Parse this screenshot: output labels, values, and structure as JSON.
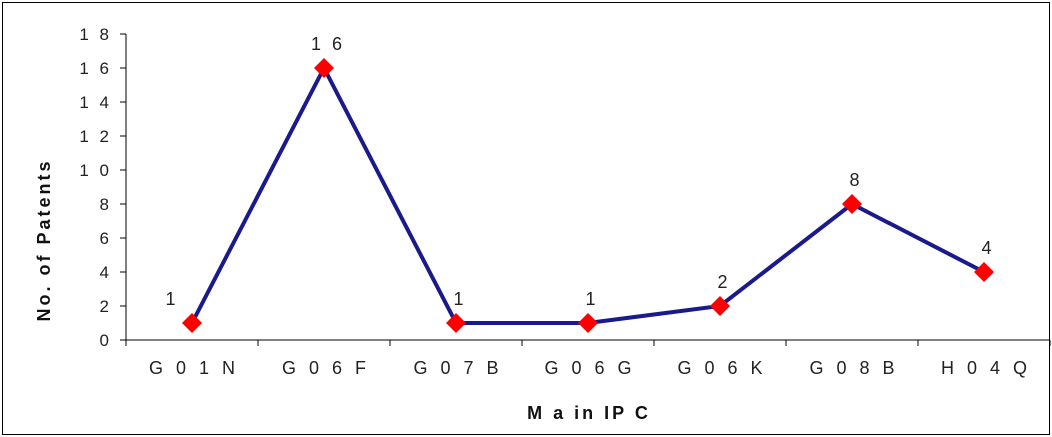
{
  "chart_data": {
    "type": "line",
    "title": "",
    "xlabel": "M a in  IP C",
    "ylabel": "No. of Patents",
    "categories": [
      "G 0 1 N",
      "G 0 6 F",
      "G 0 7 B",
      "G 0 6 G",
      "G 0 6 K",
      "G 0 8 B",
      "H 0 4 Q"
    ],
    "series": [
      {
        "values": [
          1,
          16,
          1,
          1,
          2,
          8,
          4
        ],
        "data_labels": [
          "1",
          "1 6",
          "1",
          "1",
          "2",
          "8",
          "4"
        ]
      }
    ],
    "ylim": [
      0,
      18
    ],
    "y_ticks": [
      0,
      2,
      4,
      6,
      8,
      10,
      12,
      14,
      16,
      18
    ],
    "y_tick_labels": [
      "0",
      "2",
      "4",
      "6",
      "8",
      "1 0",
      "1 2",
      "1 4",
      "1 6",
      "1 8"
    ],
    "grid": false,
    "legend": "none",
    "colors": {
      "line": "#1a1a8c",
      "marker": "#ff0000",
      "axis": "#000000"
    }
  }
}
